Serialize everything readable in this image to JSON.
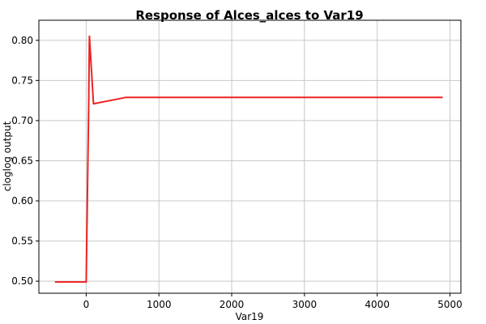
{
  "chart_data": {
    "type": "line",
    "title": "Response of Alces_alces to Var19",
    "xlabel": "Var19",
    "ylabel": "cloglog output",
    "xlim": [
      -650,
      5150
    ],
    "ylim": [
      0.485,
      0.825
    ],
    "xticks": [
      0,
      1000,
      2000,
      3000,
      4000,
      5000
    ],
    "xtick_labels": [
      "0",
      "1000",
      "2000",
      "3000",
      "4000",
      "5000"
    ],
    "yticks": [
      0.5,
      0.55,
      0.6,
      0.65,
      0.7,
      0.75,
      0.8
    ],
    "ytick_labels": [
      "0.50",
      "0.55",
      "0.60",
      "0.65",
      "0.70",
      "0.75",
      "0.80"
    ],
    "grid": true,
    "series": [
      {
        "color": "#ee2222",
        "x": [
          -430,
          0,
          35,
          45,
          55,
          100,
          550,
          4900
        ],
        "y": [
          0.499,
          0.499,
          0.72,
          0.805,
          0.79,
          0.721,
          0.729,
          0.729
        ]
      }
    ]
  }
}
